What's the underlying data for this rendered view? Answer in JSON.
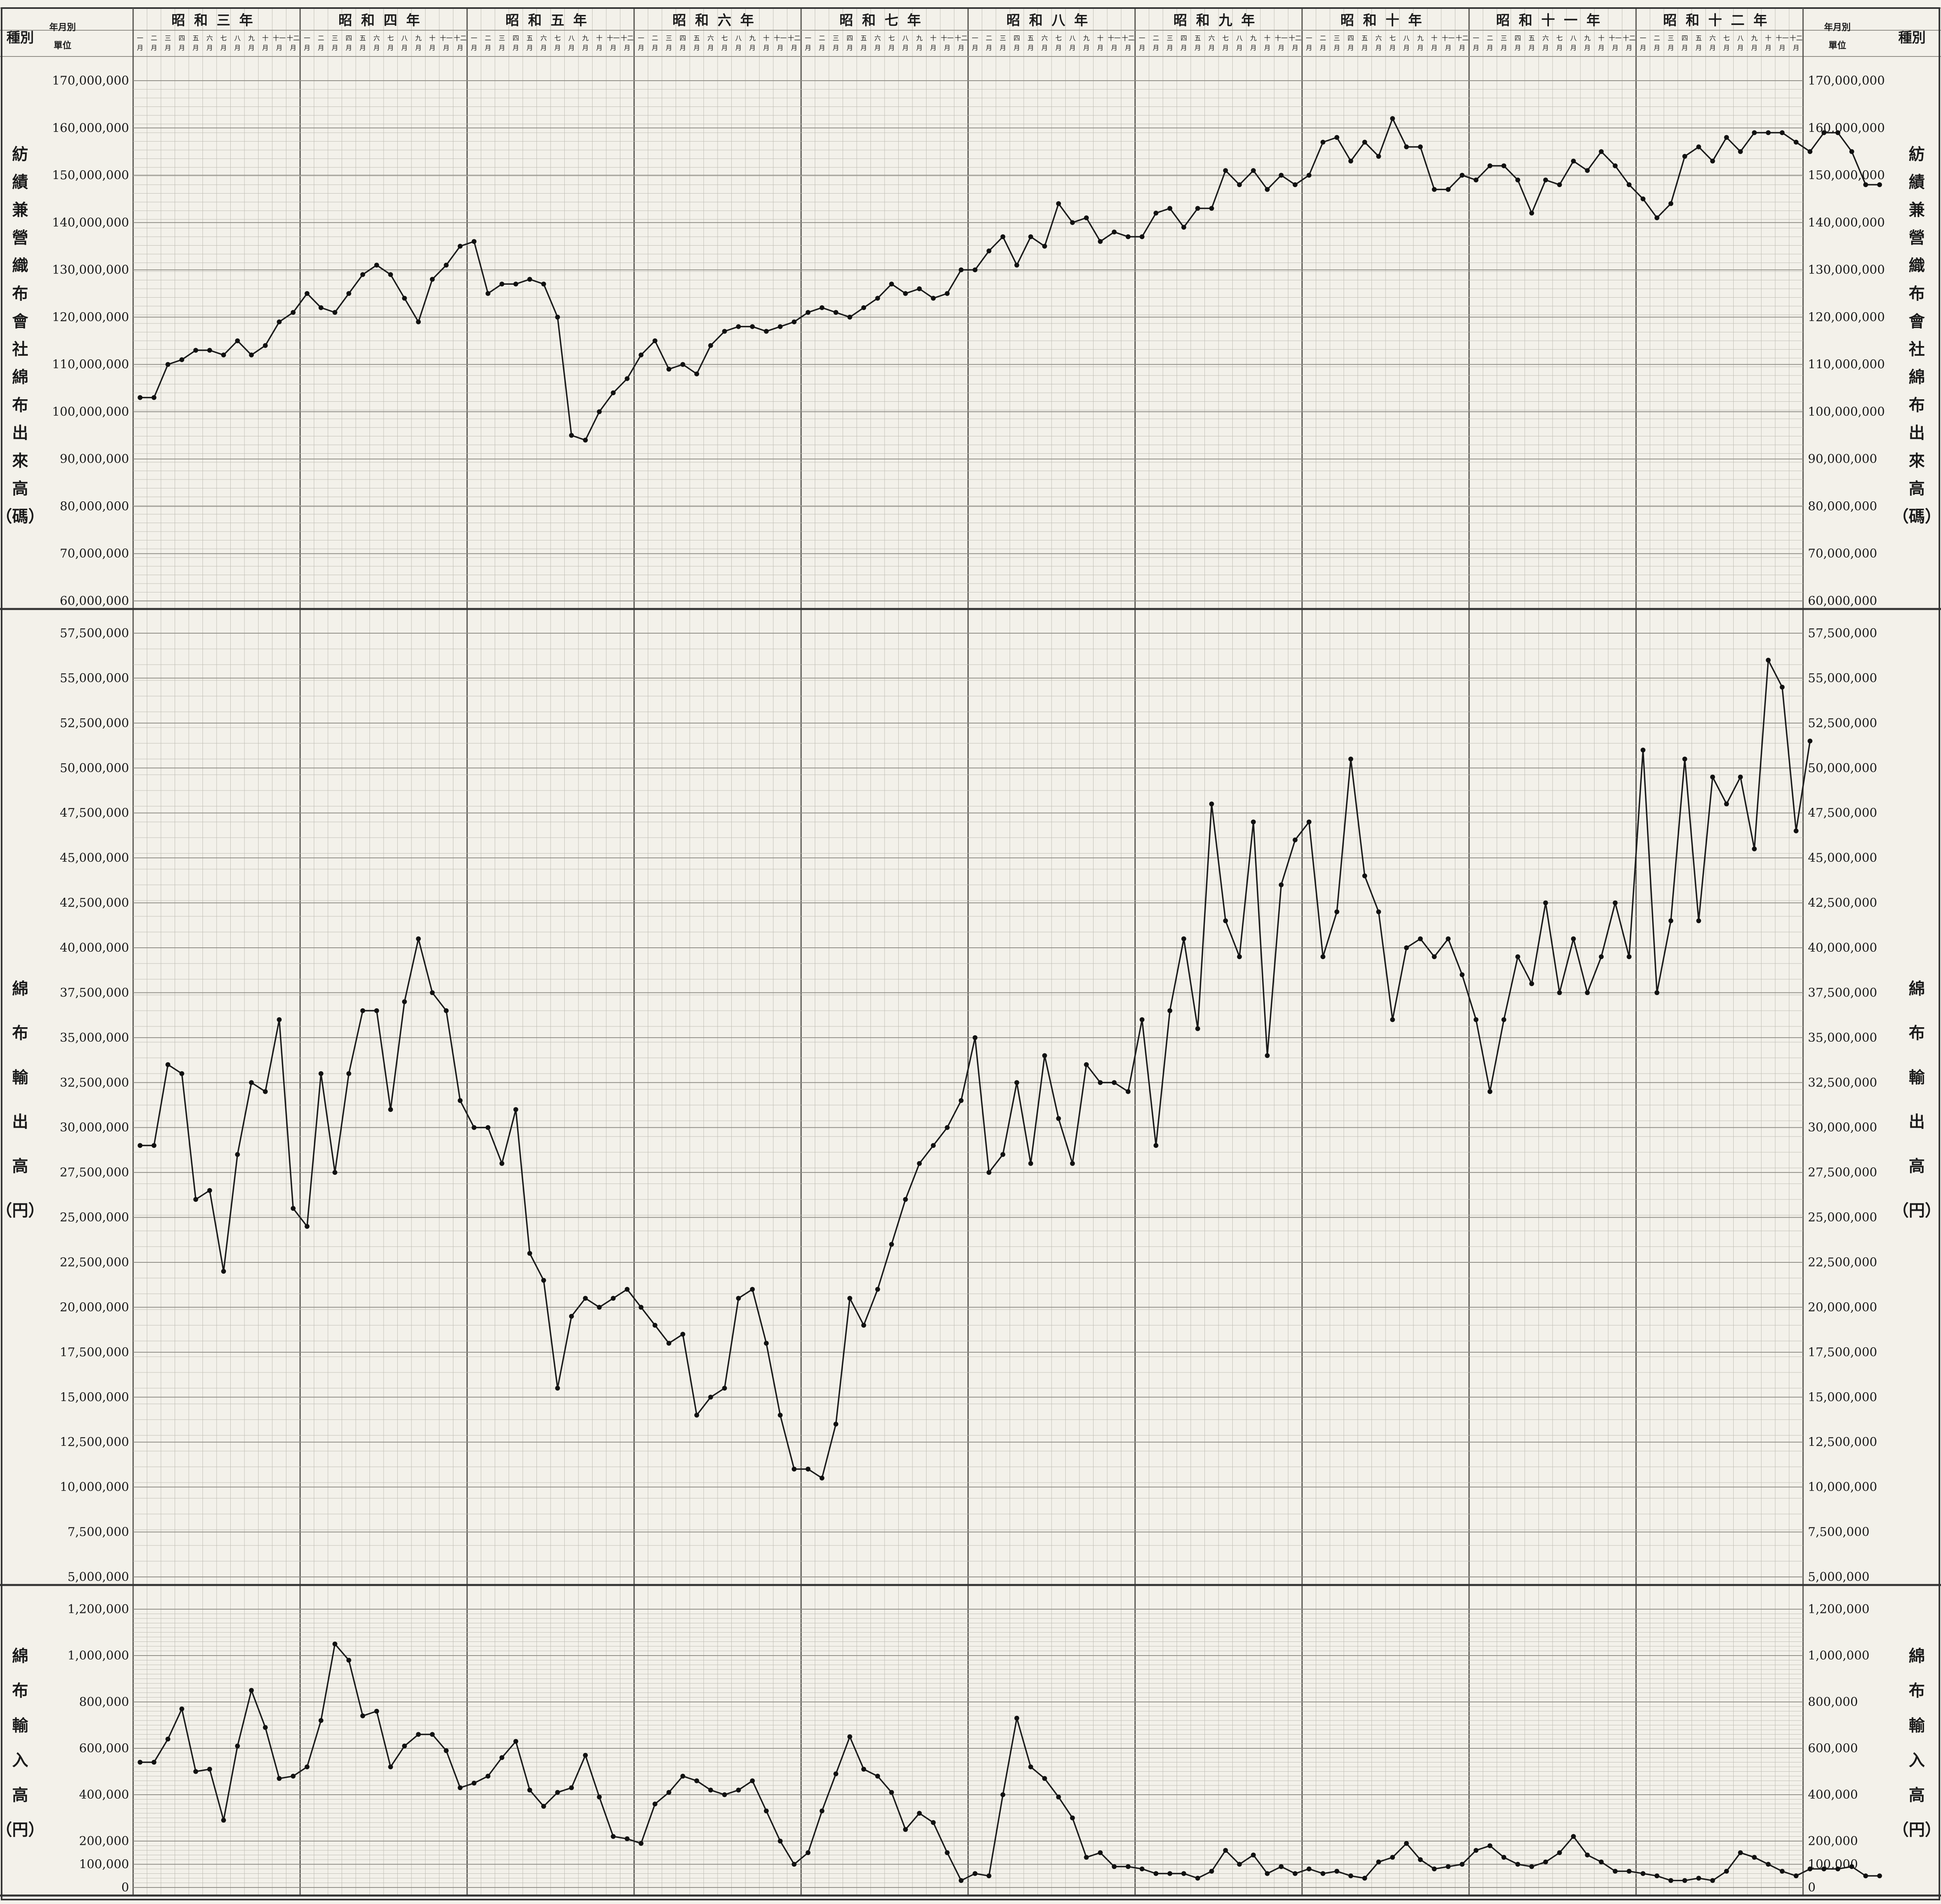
{
  "title": "",
  "header": {
    "left_top": "種別",
    "left_top2": "年月別",
    "unit_label": "單位",
    "right_top": "年月別",
    "right_top2": "種別",
    "years": [
      "昭和三年",
      "昭和四年",
      "昭和五年",
      "昭和六年",
      "昭和七年",
      "昭和八年",
      "昭和九年",
      "昭和十年",
      "昭和十一年",
      "昭和十二年"
    ],
    "months": [
      "一",
      "二",
      "三",
      "四",
      "五",
      "六",
      "七",
      "八",
      "九",
      "十",
      "十一",
      "十二"
    ],
    "month_suffix": "月"
  },
  "chart_data": [
    {
      "type": "line",
      "panel": "top",
      "ylabel": "紡績兼營織布會社綿布出來高（碼）",
      "ylabel_chars": [
        "紡",
        "績",
        "兼",
        "營",
        "織",
        "布",
        "會",
        "社",
        "綿",
        "布",
        "出",
        "來",
        "高",
        "（碼）"
      ],
      "ylim": [
        60000000,
        170000000
      ],
      "yticks": [
        "60,000,000",
        "70,000,000",
        "80,000,000",
        "90,000,000",
        "100,000,000",
        "110,000,000",
        "120,000,000",
        "130,000,000",
        "140,000,000",
        "150,000,000",
        "160,000,000",
        "170,000,000"
      ],
      "x_start": "1928-01",
      "x_unit": "month",
      "values": [
        103000000,
        103000000,
        110000000,
        111000000,
        113000000,
        113000000,
        112000000,
        115000000,
        112000000,
        114000000,
        119000000,
        121000000,
        125000000,
        122000000,
        121000000,
        125000000,
        129000000,
        131000000,
        129000000,
        124000000,
        119000000,
        128000000,
        131000000,
        135000000,
        136000000,
        125000000,
        127000000,
        127000000,
        128000000,
        127000000,
        120000000,
        95000000,
        94000000,
        100000000,
        104000000,
        107000000,
        112000000,
        115000000,
        109000000,
        110000000,
        108000000,
        114000000,
        117000000,
        118000000,
        118000000,
        117000000,
        118000000,
        119000000,
        121000000,
        122000000,
        121000000,
        120000000,
        122000000,
        124000000,
        127000000,
        125000000,
        126000000,
        124000000,
        125000000,
        130000000,
        130000000,
        134000000,
        137000000,
        131000000,
        137000000,
        135000000,
        144000000,
        140000000,
        141000000,
        136000000,
        138000000,
        137000000,
        137000000,
        142000000,
        143000000,
        139000000,
        143000000,
        143000000,
        151000000,
        148000000,
        151000000,
        147000000,
        150000000,
        148000000,
        150000000,
        157000000,
        158000000,
        153000000,
        157000000,
        154000000,
        162000000,
        156000000,
        156000000,
        147000000,
        147000000,
        150000000,
        149000000,
        152000000,
        152000000,
        149000000,
        142000000,
        149000000,
        148000000,
        153000000,
        151000000,
        155000000,
        152000000,
        148000000,
        145000000,
        141000000,
        144000000,
        154000000,
        156000000,
        153000000,
        158000000,
        155000000,
        159000000,
        159000000,
        159000000,
        157000000,
        155000000,
        159000000,
        159000000,
        155000000,
        148000000,
        148000000
      ]
    },
    {
      "type": "line",
      "panel": "middle",
      "ylabel": "綿布輸出高（円）",
      "ylabel_chars": [
        "綿",
        "布",
        "輸",
        "出",
        "高",
        "（円）"
      ],
      "ylim": [
        5000000,
        57500000
      ],
      "yticks": [
        "5,000,000",
        "7,500,000",
        "10,000,000",
        "12,500,000",
        "15,000,000",
        "17,500,000",
        "20,000,000",
        "22,500,000",
        "25,000,000",
        "27,500,000",
        "30,000,000",
        "32,500,000",
        "35,000,000",
        "37,500,000",
        "40,000,000",
        "42,500,000",
        "45,000,000",
        "47,500,000",
        "50,000,000",
        "52,500,000",
        "55,000,000",
        "57,500,000"
      ],
      "x_start": "1928-01",
      "x_unit": "month",
      "values": [
        29000000,
        29000000,
        33500000,
        33000000,
        26000000,
        26500000,
        22000000,
        28500000,
        32500000,
        32000000,
        36000000,
        25500000,
        24500000,
        33000000,
        27500000,
        33000000,
        36500000,
        36500000,
        31000000,
        37000000,
        40500000,
        37500000,
        36500000,
        31500000,
        30000000,
        30000000,
        28000000,
        31000000,
        23000000,
        21500000,
        15500000,
        19500000,
        20500000,
        20000000,
        20500000,
        21000000,
        20000000,
        19000000,
        18000000,
        18500000,
        14000000,
        15000000,
        15500000,
        20500000,
        21000000,
        18000000,
        14000000,
        11000000,
        11000000,
        10500000,
        13500000,
        20500000,
        19000000,
        21000000,
        23500000,
        26000000,
        28000000,
        29000000,
        30000000,
        31500000,
        35000000,
        27500000,
        28500000,
        32500000,
        28000000,
        34000000,
        30500000,
        28000000,
        33500000,
        32500000,
        32500000,
        32000000,
        36000000,
        29000000,
        36500000,
        40500000,
        35500000,
        48000000,
        41500000,
        39500000,
        47000000,
        34000000,
        43500000,
        46000000,
        47000000,
        39500000,
        42000000,
        50500000,
        44000000,
        42000000,
        36000000,
        40000000,
        40500000,
        39500000,
        40500000,
        38500000,
        36000000,
        32000000,
        36000000,
        39500000,
        38000000,
        42500000,
        37500000,
        40500000,
        37500000,
        39500000,
        42500000,
        39500000,
        51000000,
        37500000,
        41500000,
        50500000,
        41500000,
        49500000,
        48000000,
        49500000,
        45500000,
        56000000,
        54500000,
        46500000,
        51500000
      ]
    },
    {
      "type": "line",
      "panel": "bottom",
      "ylabel": "綿布輸入高（円）",
      "ylabel_chars": [
        "綿",
        "布",
        "輸",
        "入",
        "高",
        "（円）"
      ],
      "ylim": [
        0,
        1200000
      ],
      "yticks": [
        "0",
        "100,000",
        "200,000",
        "400,000",
        "600,000",
        "800,000",
        "1,000,000",
        "1,200,000"
      ],
      "x_start": "1928-01",
      "x_unit": "month",
      "values": [
        540000,
        540000,
        640000,
        770000,
        500000,
        510000,
        290000,
        610000,
        850000,
        690000,
        470000,
        480000,
        520000,
        720000,
        1050000,
        980000,
        740000,
        760000,
        520000,
        610000,
        660000,
        660000,
        590000,
        430000,
        450000,
        480000,
        560000,
        630000,
        420000,
        350000,
        410000,
        430000,
        570000,
        390000,
        220000,
        210000,
        190000,
        360000,
        410000,
        480000,
        460000,
        420000,
        400000,
        420000,
        460000,
        330000,
        200000,
        100000,
        150000,
        330000,
        490000,
        650000,
        510000,
        480000,
        410000,
        250000,
        320000,
        280000,
        150000,
        30000,
        60000,
        50000,
        400000,
        730000,
        520000,
        470000,
        390000,
        300000,
        130000,
        150000,
        90000,
        90000,
        80000,
        60000,
        60000,
        60000,
        40000,
        70000,
        160000,
        100000,
        140000,
        60000,
        90000,
        60000,
        80000,
        60000,
        70000,
        50000,
        40000,
        110000,
        130000,
        190000,
        120000,
        80000,
        90000,
        100000,
        160000,
        180000,
        130000,
        100000,
        90000,
        110000,
        150000,
        220000,
        140000,
        110000,
        70000,
        70000,
        60000,
        50000,
        30000,
        30000,
        40000,
        30000,
        70000,
        150000,
        130000,
        100000,
        70000,
        50000,
        80000,
        80000,
        80000,
        90000,
        50000,
        50000
      ]
    }
  ]
}
